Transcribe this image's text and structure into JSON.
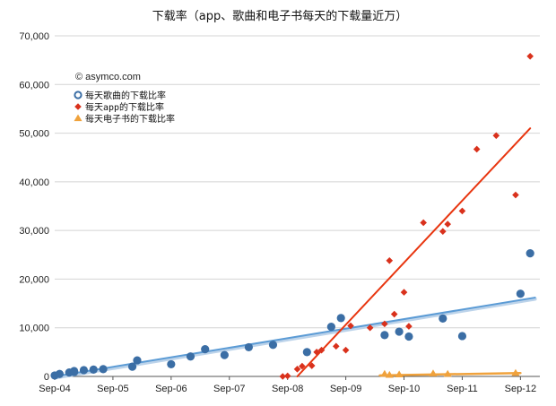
{
  "chart_data": {
    "type": "scatter",
    "title": "下载率（app、歌曲和电子书每天的下载量近万）",
    "watermark": "© asymco.com",
    "ylim": [
      0,
      70000
    ],
    "yticks": [
      "0",
      "10,000",
      "20,000",
      "30,000",
      "40,000",
      "50,000",
      "60,000",
      "70,000"
    ],
    "xlim": [
      "2004-09",
      "2013-01"
    ],
    "xticks": [
      "Sep-04",
      "Sep-05",
      "Sep-06",
      "Sep-07",
      "Sep-08",
      "Sep-09",
      "Sep-10",
      "Sep-11",
      "Sep-12"
    ],
    "grid": true,
    "legend_position": "top-left",
    "series": [
      {
        "name": "每天歌曲的下载比率",
        "marker": "circle",
        "color": "#3b6ea5",
        "points": [
          [
            "2004-09",
            200
          ],
          [
            "2004-10",
            500
          ],
          [
            "2004-12",
            800
          ],
          [
            "2005-01",
            1100
          ],
          [
            "2005-01",
            900
          ],
          [
            "2005-03",
            1300
          ],
          [
            "2005-05",
            1400
          ],
          [
            "2005-07",
            1500
          ],
          [
            "2006-01",
            2000
          ],
          [
            "2006-02",
            3300
          ],
          [
            "2006-09",
            2500
          ],
          [
            "2007-01",
            4100
          ],
          [
            "2007-04",
            5600
          ],
          [
            "2007-08",
            4400
          ],
          [
            "2008-01",
            6000
          ],
          [
            "2008-06",
            6500
          ],
          [
            "2009-01",
            5000
          ],
          [
            "2009-06",
            10200
          ],
          [
            "2009-08",
            12000
          ],
          [
            "2010-05",
            8500
          ],
          [
            "2010-08",
            9200
          ],
          [
            "2010-10",
            8200
          ],
          [
            "2011-05",
            11900
          ],
          [
            "2011-09",
            8300
          ],
          [
            "2012-09",
            17000
          ],
          [
            "2012-11",
            25300
          ]
        ]
      },
      {
        "name": "每天app的下载比率",
        "marker": "diamond",
        "color": "#d9311c",
        "points": [
          [
            "2008-08",
            0
          ],
          [
            "2008-09",
            100
          ],
          [
            "2008-11",
            1500
          ],
          [
            "2008-12",
            2100
          ],
          [
            "2009-02",
            2200
          ],
          [
            "2009-03",
            5000
          ],
          [
            "2009-04",
            5400
          ],
          [
            "2009-07",
            6200
          ],
          [
            "2009-09",
            5400
          ],
          [
            "2009-10",
            10400
          ],
          [
            "2010-02",
            10000
          ],
          [
            "2010-05",
            10800
          ],
          [
            "2010-06",
            23800
          ],
          [
            "2010-07",
            12800
          ],
          [
            "2010-09",
            17300
          ],
          [
            "2010-10",
            10300
          ],
          [
            "2011-01",
            31600
          ],
          [
            "2011-05",
            29800
          ],
          [
            "2011-06",
            31300
          ],
          [
            "2011-09",
            34000
          ],
          [
            "2011-12",
            46700
          ],
          [
            "2012-04",
            49500
          ],
          [
            "2012-08",
            37300
          ],
          [
            "2012-11",
            65800
          ]
        ]
      },
      {
        "name": "每天电子书的下载比率",
        "marker": "triangle",
        "color": "#f0a23c",
        "points": [
          [
            "2010-05",
            500
          ],
          [
            "2010-06",
            300
          ],
          [
            "2010-08",
            400
          ],
          [
            "2011-03",
            600
          ],
          [
            "2011-06",
            500
          ],
          [
            "2012-08",
            700
          ]
        ]
      }
    ],
    "trendlines": [
      {
        "series": "每天歌曲的下载比率",
        "from": [
          "2004-09",
          0
        ],
        "to": [
          "2012-12",
          16200
        ],
        "color": "#5b9bd5"
      },
      {
        "series": "每天app的下载比率",
        "from": [
          "2008-11",
          0
        ],
        "to": [
          "2012-11",
          51000
        ],
        "color": "#e8350f"
      },
      {
        "series": "每天电子书的下载比率",
        "from": [
          "2010-04",
          200
        ],
        "to": [
          "2012-09",
          700
        ],
        "color": "#f0a23c"
      }
    ]
  }
}
